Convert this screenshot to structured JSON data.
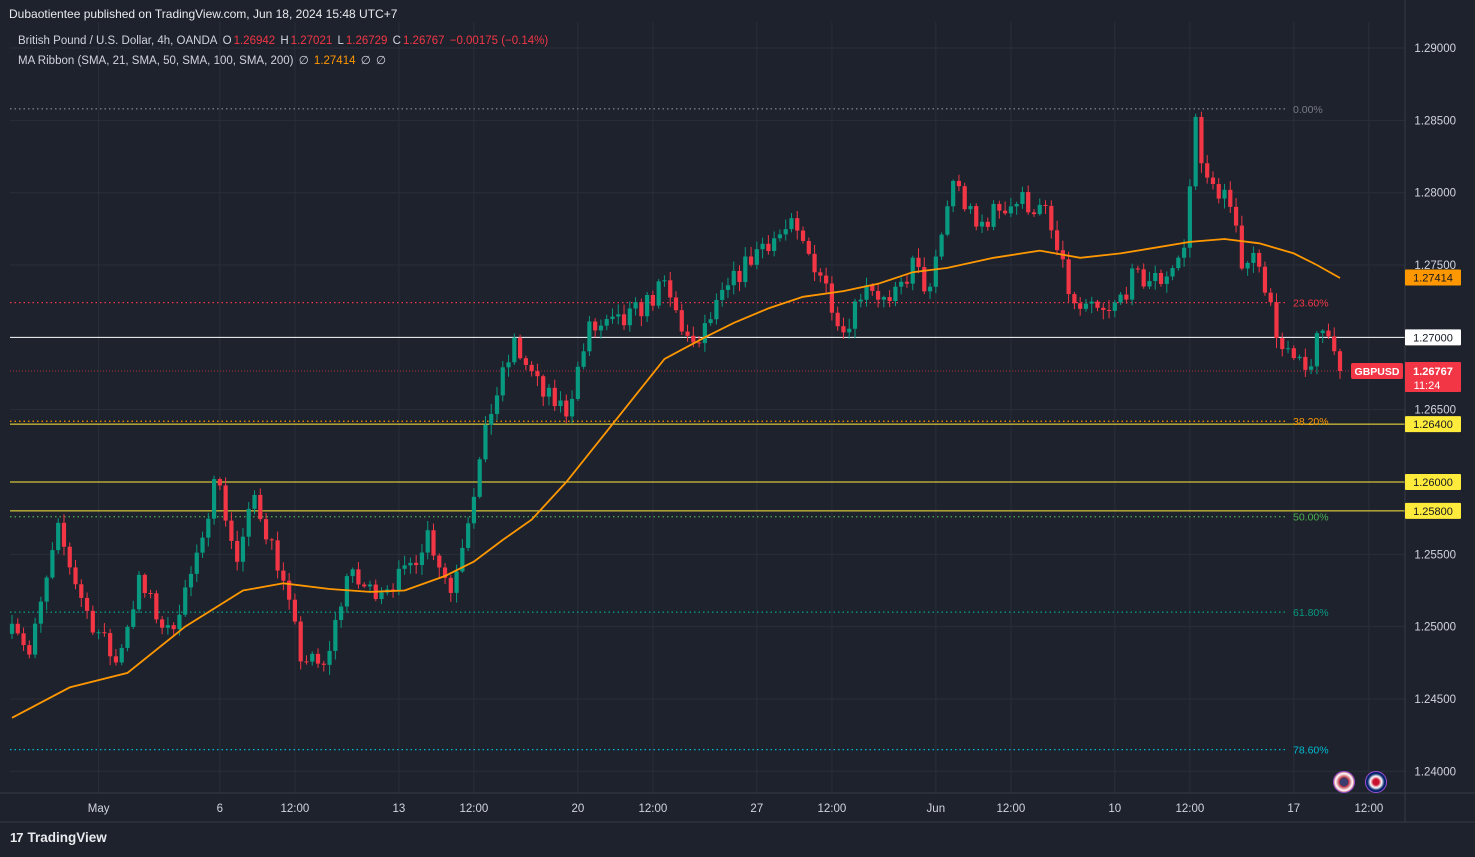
{
  "header": {
    "credit": "Dubaotientee published on TradingView.com, Jun 18, 2024 15:48 UTC+7",
    "symbol_desc": "British Pound / U.S. Dollar, 4h, OANDA",
    "o_label": "O",
    "o_value": "1.26942",
    "h_label": "H",
    "h_value": "1.27021",
    "l_label": "L",
    "l_value": "1.26729",
    "c_label": "C",
    "c_value": "1.26767",
    "change": "−0.00175 (−0.14%)",
    "ma_label": "MA Ribbon (SMA, 21, SMA, 50, SMA, 100, SMA, 200)",
    "ma_values": [
      "∅",
      "1.27414",
      "∅",
      "∅"
    ]
  },
  "footer": {
    "brand": "TradingView",
    "brand_mark": "17"
  },
  "colors": {
    "background": "#1e222d",
    "grid": "#2a2e39",
    "up": "#089981",
    "down": "#f23645",
    "ma": "#ff9800",
    "yellow_level": "#ffeb3b",
    "white_level": "#ffffff",
    "fib_0": "#787b86",
    "fib_236": "#f23645",
    "fib_382": "#ff9800",
    "fib_50": "#4caf50",
    "fib_618": "#089981",
    "fib_786": "#00bcd4"
  },
  "chart_data": {
    "type": "candlestick",
    "symbol": "GBPUSD",
    "timeframe": "4h",
    "y_axis": {
      "ylim": [
        1.2385,
        1.2918
      ],
      "ticks": [
        "1.29000",
        "1.28500",
        "1.28000",
        "1.27500",
        "1.26500",
        "1.25500",
        "1.25000",
        "1.24500",
        "1.24000"
      ],
      "tick_values": [
        1.29,
        1.285,
        1.28,
        1.275,
        1.265,
        1.255,
        1.25,
        1.245,
        1.24
      ]
    },
    "x_axis": {
      "labels": [
        "May",
        "6",
        "12:00",
        "13",
        "12:00",
        "20",
        "12:00",
        "27",
        "12:00",
        "Jun",
        "12:00",
        "10",
        "12:00",
        "17",
        "12:00"
      ],
      "label_bars": [
        15,
        36,
        49,
        67,
        80,
        98,
        111,
        129,
        142,
        160,
        173,
        191,
        204,
        222,
        235
      ]
    },
    "horizontal_levels": [
      {
        "price": 1.27,
        "label": "1.27000",
        "color": "white"
      },
      {
        "price": 1.264,
        "label": "1.26400",
        "color": "yellow"
      },
      {
        "price": 1.26,
        "label": "1.26000",
        "color": "yellow"
      },
      {
        "price": 1.258,
        "label": "1.25800",
        "color": "yellow"
      }
    ],
    "fib_levels": [
      {
        "ratio": "0.00%",
        "price": 1.2858,
        "key": "fib_0"
      },
      {
        "ratio": "23.60%",
        "price": 1.2724,
        "key": "fib_236"
      },
      {
        "ratio": "38.20%",
        "price": 1.2642,
        "key": "fib_382"
      },
      {
        "ratio": "50.00%",
        "price": 1.2576,
        "key": "fib_50"
      },
      {
        "ratio": "61.80%",
        "price": 1.251,
        "key": "fib_618"
      },
      {
        "ratio": "78.60%",
        "price": 1.2415,
        "key": "fib_786"
      }
    ],
    "last_price": {
      "label": "1.26767",
      "countdown": "11:24",
      "symbol_tag": "GBPUSD",
      "price": 1.26767
    },
    "ma_label": {
      "label": "1.27414",
      "price": 1.27414
    },
    "key_closes": [
      [
        0,
        1.251
      ],
      [
        3,
        1.248
      ],
      [
        8,
        1.2565
      ],
      [
        13,
        1.251
      ],
      [
        18,
        1.2475
      ],
      [
        22,
        1.253
      ],
      [
        27,
        1.2495
      ],
      [
        33,
        1.2555
      ],
      [
        35,
        1.261
      ],
      [
        39,
        1.2545
      ],
      [
        42,
        1.259
      ],
      [
        46,
        1.2545
      ],
      [
        50,
        1.248
      ],
      [
        54,
        1.247
      ],
      [
        58,
        1.2535
      ],
      [
        62,
        1.2525
      ],
      [
        68,
        1.2535
      ],
      [
        72,
        1.2565
      ],
      [
        76,
        1.2525
      ],
      [
        80,
        1.2595
      ],
      [
        83,
        1.265
      ],
      [
        87,
        1.2695
      ],
      [
        92,
        1.266
      ],
      [
        96,
        1.265
      ],
      [
        100,
        1.2705
      ],
      [
        106,
        1.271
      ],
      [
        113,
        1.2735
      ],
      [
        118,
        1.269
      ],
      [
        122,
        1.272
      ],
      [
        126,
        1.2745
      ],
      [
        130,
        1.2765
      ],
      [
        135,
        1.2775
      ],
      [
        140,
        1.2745
      ],
      [
        144,
        1.2705
      ],
      [
        148,
        1.274
      ],
      [
        152,
        1.272
      ],
      [
        156,
        1.275
      ],
      [
        159,
        1.273
      ],
      [
        163,
        1.281
      ],
      [
        167,
        1.2775
      ],
      [
        171,
        1.279
      ],
      [
        175,
        1.2795
      ],
      [
        179,
        1.2785
      ],
      [
        184,
        1.272
      ],
      [
        190,
        1.2715
      ],
      [
        194,
        1.274
      ],
      [
        199,
        1.274
      ],
      [
        203,
        1.276
      ],
      [
        205,
        1.285
      ],
      [
        207,
        1.2805
      ],
      [
        210,
        1.28
      ],
      [
        213,
        1.2755
      ],
      [
        216,
        1.2755
      ],
      [
        218,
        1.272
      ],
      [
        220,
        1.269
      ],
      [
        224,
        1.2675
      ],
      [
        227,
        1.2705
      ],
      [
        229,
        1.2695
      ],
      [
        230,
        1.26767
      ]
    ],
    "ma_points": [
      [
        0,
        1.2437
      ],
      [
        10,
        1.2458
      ],
      [
        20,
        1.2468
      ],
      [
        30,
        1.25
      ],
      [
        40,
        1.2525
      ],
      [
        47,
        1.253
      ],
      [
        55,
        1.2526
      ],
      [
        62,
        1.2524
      ],
      [
        68,
        1.2525
      ],
      [
        75,
        1.2535
      ],
      [
        80,
        1.2545
      ],
      [
        85,
        1.256
      ],
      [
        90,
        1.2574
      ],
      [
        96,
        1.26
      ],
      [
        105,
        1.2645
      ],
      [
        113,
        1.2685
      ],
      [
        120,
        1.27
      ],
      [
        125,
        1.271
      ],
      [
        131,
        1.272
      ],
      [
        137,
        1.2728
      ],
      [
        144,
        1.2732
      ],
      [
        150,
        1.2737
      ],
      [
        156,
        1.2745
      ],
      [
        162,
        1.2748
      ],
      [
        170,
        1.2755
      ],
      [
        178,
        1.276
      ],
      [
        185,
        1.2755
      ],
      [
        192,
        1.2758
      ],
      [
        198,
        1.2762
      ],
      [
        204,
        1.2766
      ],
      [
        210,
        1.2768
      ],
      [
        216,
        1.2765
      ],
      [
        222,
        1.2758
      ],
      [
        226,
        1.275
      ],
      [
        230,
        1.2741
      ]
    ]
  }
}
